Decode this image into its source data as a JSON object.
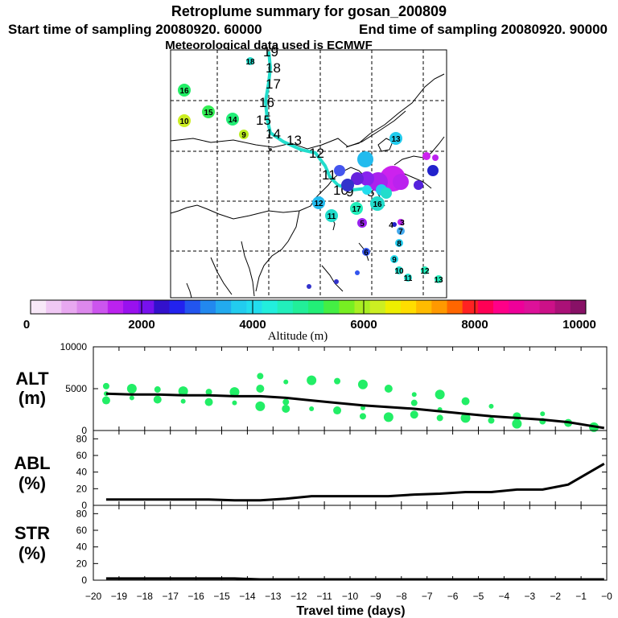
{
  "header": {
    "title": "Retroplume summary for gosan_200809",
    "start_time": "Start time of sampling 20080920. 60000",
    "end_time": "End time of sampling 20080920. 90000",
    "met_data": "Meteorological data used is ECMWF"
  },
  "colors": {
    "plume_dot": "#22ee66",
    "line": "#000000"
  },
  "map": {
    "trajectory_labels": [
      "19",
      "18",
      "17",
      "16",
      "15",
      "14",
      "13",
      "12",
      "11",
      "10",
      "9",
      "8"
    ],
    "dots": [
      {
        "label": "16",
        "color": "#22ee66"
      },
      {
        "label": "15",
        "color": "#33ee55"
      },
      {
        "label": "10",
        "color": "#ccee22"
      },
      {
        "label": "14",
        "color": "#22ee77"
      },
      {
        "label": "9",
        "color": "#bbee22"
      },
      {
        "label": "18",
        "color": "#22ddcc"
      },
      {
        "label": "13",
        "color": "#22ccee"
      },
      {
        "label": "12",
        "color": "#22bbee"
      },
      {
        "label": "11",
        "color": "#22ddcc"
      },
      {
        "label": "17",
        "color": "#22eebb"
      },
      {
        "label": "16",
        "color": "#22ddcc"
      },
      {
        "label": "6",
        "color": "#3355ee"
      },
      {
        "label": "5",
        "color": "#9922ee"
      },
      {
        "label": "4",
        "color": "#2222cc"
      },
      {
        "label": "3",
        "color": "#bb22ee"
      },
      {
        "label": "7",
        "color": "#44aaee"
      },
      {
        "label": "8",
        "color": "#22ccee"
      },
      {
        "label": "9",
        "color": "#22ddee"
      },
      {
        "label": "10",
        "color": "#22ddcc"
      },
      {
        "label": "11",
        "color": "#22ddcc"
      },
      {
        "label": "12",
        "color": "#22eebb"
      },
      {
        "label": "13",
        "color": "#22eebb"
      }
    ]
  },
  "colorbar": {
    "ticks": [
      "0",
      "2000",
      "4000",
      "6000",
      "8000",
      "10000"
    ],
    "label": "Altitude (m)"
  },
  "chart_data": [
    {
      "type": "line",
      "title": "ALT (m)",
      "ylabel_top": "ALT",
      "ylabel_bottom": "(m)",
      "ylim": [
        0,
        10000
      ],
      "yticks": [
        "0",
        "5000",
        "10000"
      ],
      "x": [
        -19.5,
        -18.5,
        -17.5,
        -16.5,
        -15.5,
        -14.5,
        -13.5,
        -12.5,
        -11.5,
        -10.5,
        -9.5,
        -8.5,
        -7.5,
        -6.5,
        -5.5,
        -4.5,
        -3.5,
        -2.5,
        -1.5,
        -0.5,
        -0.1
      ],
      "values": [
        4400,
        4300,
        4300,
        4200,
        4200,
        4100,
        4100,
        3900,
        3600,
        3300,
        3000,
        2800,
        2600,
        2300,
        2000,
        1700,
        1500,
        1300,
        1000,
        500,
        300
      ],
      "plume_points": [
        {
          "x": -19.5,
          "y": 4400
        },
        {
          "x": -19.5,
          "y": 5300
        },
        {
          "x": -19.5,
          "y": 3600
        },
        {
          "x": -18.5,
          "y": 5000
        },
        {
          "x": -18.5,
          "y": 3900
        },
        {
          "x": -17.5,
          "y": 4900
        },
        {
          "x": -17.5,
          "y": 3700
        },
        {
          "x": -16.5,
          "y": 4700
        },
        {
          "x": -16.5,
          "y": 3500
        },
        {
          "x": -15.5,
          "y": 4600
        },
        {
          "x": -15.5,
          "y": 3400
        },
        {
          "x": -14.5,
          "y": 4600
        },
        {
          "x": -14.5,
          "y": 3300
        },
        {
          "x": -13.5,
          "y": 6500
        },
        {
          "x": -13.5,
          "y": 5000
        },
        {
          "x": -13.5,
          "y": 2900
        },
        {
          "x": -12.5,
          "y": 5800
        },
        {
          "x": -12.5,
          "y": 3400
        },
        {
          "x": -12.5,
          "y": 2600
        },
        {
          "x": -11.5,
          "y": 6000
        },
        {
          "x": -11.5,
          "y": 2600
        },
        {
          "x": -10.5,
          "y": 5900
        },
        {
          "x": -10.5,
          "y": 2400
        },
        {
          "x": -9.5,
          "y": 5500
        },
        {
          "x": -9.5,
          "y": 2700
        },
        {
          "x": -9.5,
          "y": 1700
        },
        {
          "x": -8.5,
          "y": 5000
        },
        {
          "x": -8.5,
          "y": 1600
        },
        {
          "x": -7.5,
          "y": 4300
        },
        {
          "x": -7.5,
          "y": 3300
        },
        {
          "x": -7.5,
          "y": 1900
        },
        {
          "x": -6.5,
          "y": 4300
        },
        {
          "x": -6.5,
          "y": 2500
        },
        {
          "x": -6.5,
          "y": 1500
        },
        {
          "x": -5.5,
          "y": 3500
        },
        {
          "x": -5.5,
          "y": 1500
        },
        {
          "x": -4.5,
          "y": 2900
        },
        {
          "x": -4.5,
          "y": 1200
        },
        {
          "x": -3.5,
          "y": 1700
        },
        {
          "x": -3.5,
          "y": 800
        },
        {
          "x": -2.5,
          "y": 2000
        },
        {
          "x": -2.5,
          "y": 1100
        },
        {
          "x": -1.5,
          "y": 900
        },
        {
          "x": -0.5,
          "y": 400
        }
      ]
    },
    {
      "type": "line",
      "title": "ABL (%)",
      "ylabel_top": "ABL",
      "ylabel_bottom": "(%)",
      "ylim": [
        0,
        90
      ],
      "yticks": [
        "0",
        "20",
        "40",
        "60",
        "80"
      ],
      "x": [
        -19.5,
        -18.5,
        -17.5,
        -16.5,
        -15.5,
        -14.5,
        -13.5,
        -12.5,
        -11.5,
        -10.5,
        -9.5,
        -8.5,
        -7.5,
        -6.5,
        -5.5,
        -4.5,
        -3.5,
        -2.5,
        -1.5,
        -0.1
      ],
      "values": [
        7,
        7,
        7,
        7,
        7,
        6,
        6,
        8,
        11,
        11,
        11,
        11,
        13,
        14,
        16,
        16,
        19,
        19,
        25,
        50
      ]
    },
    {
      "type": "line",
      "title": "STR (%)",
      "ylabel_top": "STR",
      "ylabel_bottom": "(%)",
      "ylim": [
        0,
        90
      ],
      "yticks": [
        "0",
        "20",
        "40",
        "60",
        "80"
      ],
      "x": [
        -19.5,
        -18.5,
        -17.5,
        -16.5,
        -15.5,
        -14.5,
        -13.5,
        -12.5,
        -11.5,
        -10.5,
        -9.5,
        -8.5,
        -7.5,
        -6.5,
        -5.5,
        -4.5,
        -3.5,
        -2.5,
        -1.5,
        -0.1
      ],
      "values": [
        2,
        2,
        2,
        2,
        2,
        2,
        1,
        1,
        1,
        1,
        1,
        1,
        1,
        1,
        1,
        1,
        1,
        1,
        1,
        1
      ]
    }
  ],
  "x_axis": {
    "xlim": [
      -20,
      0
    ],
    "tick_labels": [
      "−20",
      "−19",
      "−18",
      "−17",
      "−16",
      "−15",
      "−14",
      "−13",
      "−12",
      "−11",
      "−10",
      "−9",
      "−8",
      "−7",
      "−6",
      "−5",
      "−4",
      "−3",
      "−2",
      "−1",
      "−0"
    ],
    "label": "Travel time (days)"
  }
}
